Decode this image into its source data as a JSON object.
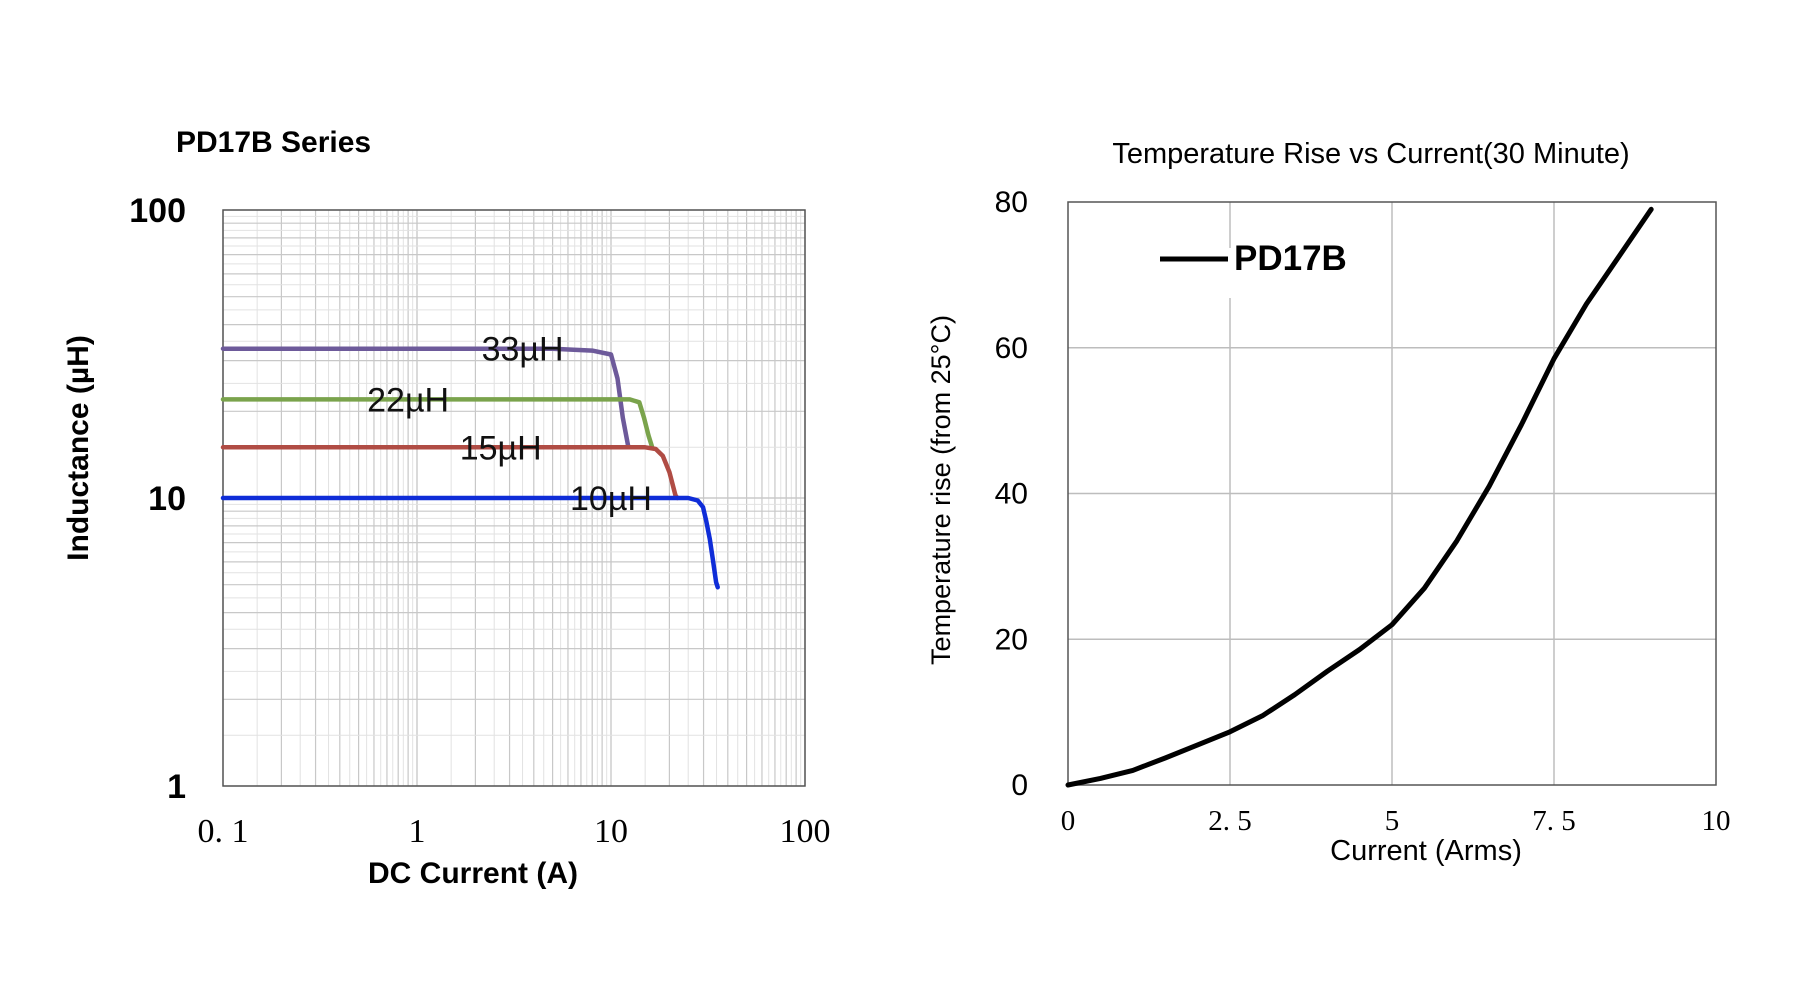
{
  "chart_data": [
    {
      "type": "line",
      "title": "PD17B Series",
      "xlabel": "DC Current (A)",
      "ylabel": "Inductance (µH)",
      "xscale": "log",
      "yscale": "log",
      "xlim": [
        0.1,
        100
      ],
      "ylim": [
        1,
        100
      ],
      "grid": true,
      "x_tick_labels": [
        "0. 1",
        "1",
        "10",
        "100"
      ],
      "y_tick_labels": [
        "100",
        "10",
        "1"
      ],
      "series": [
        {
          "name": "33µH",
          "color": "#6d5a9a",
          "points": [
            [
              0.1,
              33
            ],
            [
              1,
              33
            ],
            [
              5,
              33
            ],
            [
              8,
              32.5
            ],
            [
              10,
              31.5
            ],
            [
              10.8,
              26
            ],
            [
              11.5,
              19
            ],
            [
              12.3,
              15
            ]
          ]
        },
        {
          "name": "22µH",
          "color": "#7aa34c",
          "points": [
            [
              0.1,
              22
            ],
            [
              1,
              22
            ],
            [
              10,
              22
            ],
            [
              12.5,
              22
            ],
            [
              14,
              21.5
            ],
            [
              14.8,
              19
            ],
            [
              15.6,
              16.5
            ],
            [
              16.3,
              15
            ]
          ]
        },
        {
          "name": "15µH",
          "color": "#b04c44",
          "points": [
            [
              0.1,
              15
            ],
            [
              1,
              15
            ],
            [
              10,
              15
            ],
            [
              15,
              15
            ],
            [
              17,
              14.8
            ],
            [
              18.5,
              14
            ],
            [
              20,
              12.3
            ],
            [
              21.5,
              10.2
            ],
            [
              22,
              10
            ]
          ]
        },
        {
          "name": "10µH",
          "color": "#0f2dd8",
          "points": [
            [
              0.1,
              10
            ],
            [
              1,
              10
            ],
            [
              10,
              10
            ],
            [
              20,
              10
            ],
            [
              25,
              10
            ],
            [
              28,
              9.8
            ],
            [
              29.8,
              9.3
            ],
            [
              31,
              8.3
            ],
            [
              32.3,
              7.2
            ],
            [
              33.5,
              6.1
            ],
            [
              34.8,
              5.1
            ],
            [
              35.5,
              4.9
            ]
          ]
        }
      ]
    },
    {
      "type": "line",
      "title": "Temperature Rise vs Current(30 Minute)",
      "xlabel": "Current (Arms)",
      "ylabel": "Temperature rise (from 25°C)",
      "xlim": [
        0,
        10
      ],
      "ylim": [
        0,
        80
      ],
      "grid": true,
      "x_tick_labels": [
        "0",
        "2. 5",
        "5",
        "7. 5",
        "10"
      ],
      "y_tick_labels": [
        "0",
        "20",
        "40",
        "60",
        "80"
      ],
      "legend": "top-left",
      "series": [
        {
          "name": "PD17B",
          "color": "#000000",
          "points": [
            [
              0,
              0
            ],
            [
              0.5,
              0.9
            ],
            [
              1,
              2
            ],
            [
              1.5,
              3.7
            ],
            [
              2,
              5.5
            ],
            [
              2.5,
              7.3
            ],
            [
              3,
              9.5
            ],
            [
              3.5,
              12.4
            ],
            [
              4,
              15.6
            ],
            [
              4.5,
              18.6
            ],
            [
              5,
              22
            ],
            [
              5.5,
              27
            ],
            [
              6,
              33.5
            ],
            [
              6.5,
              41
            ],
            [
              7,
              49.5
            ],
            [
              7.5,
              58.5
            ],
            [
              8,
              66
            ],
            [
              8.5,
              72.5
            ],
            [
              9,
              79
            ]
          ]
        }
      ]
    }
  ]
}
